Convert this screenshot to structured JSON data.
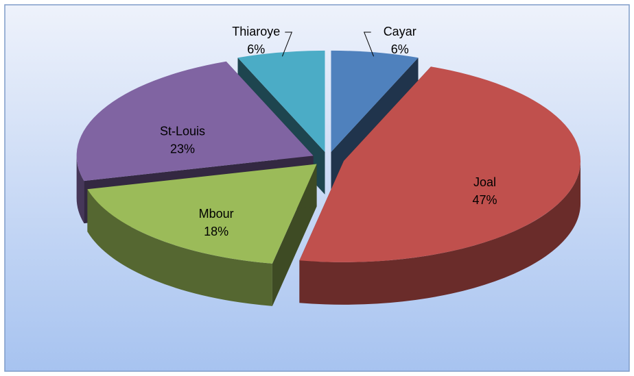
{
  "chart_data": {
    "type": "pie",
    "categories": [
      "Cayar",
      "Joal",
      "Mbour",
      "St-Louis",
      "Thiaroye"
    ],
    "values": [
      6,
      47,
      18,
      23,
      6
    ],
    "value_labels": [
      "6%",
      "47%",
      "18%",
      "23%",
      "6%"
    ],
    "colors": [
      "#4f81bd",
      "#c0504d",
      "#9bbb59",
      "#8064a2",
      "#4bacc6"
    ]
  }
}
